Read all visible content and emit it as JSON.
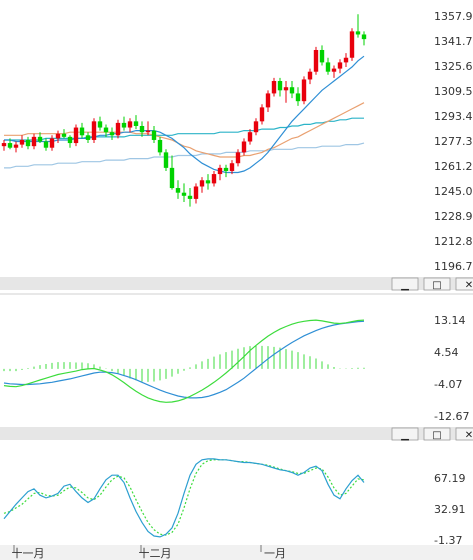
{
  "colors": {
    "up": "#e8000c",
    "down": "#00d200",
    "ma_short": "#2f8fd5",
    "ma_mid": "#e9a070",
    "ma_long1": "#2cb4c8",
    "ma_long2": "#9fc6e4",
    "macd_dif": "#3cdc3c",
    "macd_dea": "#2f8fd5",
    "kdj_k": "#2c9fd0",
    "kdj_d": "#3cdc3c",
    "separator": "#e6e6e6"
  },
  "panel_buttons": [
    {
      "icon": "minimize-icon",
      "glyph": "▁"
    },
    {
      "icon": "restore-icon",
      "glyph": "□"
    },
    {
      "icon": "close-icon",
      "glyph": "✕"
    }
  ],
  "x_labels": [
    "十一月",
    "十二月",
    "一月"
  ],
  "chart_data": [
    {
      "type": "candlestick",
      "ylim": [
        1196.74,
        1357.91
      ],
      "y_ticks": [
        "1357.91",
        "1341.79",
        "1325.68",
        "1309.56",
        "1293.44",
        "1277.33",
        "1261.21",
        "1245.09",
        "1228.98",
        "1212.86",
        "1196.74"
      ],
      "candles": [
        [
          1274,
          1278,
          1271,
          1276
        ],
        [
          1276,
          1279,
          1272,
          1273
        ],
        [
          1273,
          1277,
          1270,
          1275
        ],
        [
          1275,
          1281,
          1273,
          1278
        ],
        [
          1278,
          1280,
          1272,
          1274
        ],
        [
          1274,
          1282,
          1272,
          1280
        ],
        [
          1280,
          1283,
          1276,
          1277
        ],
        [
          1277,
          1279,
          1271,
          1273
        ],
        [
          1273,
          1281,
          1271,
          1279
        ],
        [
          1279,
          1284,
          1276,
          1282
        ],
        [
          1282,
          1285,
          1279,
          1280
        ],
        [
          1280,
          1281,
          1273,
          1276
        ],
        [
          1276,
          1288,
          1274,
          1286
        ],
        [
          1286,
          1289,
          1279,
          1281
        ],
        [
          1281,
          1283,
          1276,
          1278
        ],
        [
          1278,
          1292,
          1276,
          1290
        ],
        [
          1290,
          1293,
          1284,
          1286
        ],
        [
          1286,
          1288,
          1280,
          1283
        ],
        [
          1283,
          1286,
          1278,
          1281
        ],
        [
          1281,
          1291,
          1279,
          1289
        ],
        [
          1289,
          1293,
          1284,
          1286
        ],
        [
          1286,
          1292,
          1283,
          1290
        ],
        [
          1290,
          1294,
          1285,
          1287
        ],
        [
          1287,
          1290,
          1280,
          1283
        ],
        [
          1283,
          1290,
          1281,
          1284
        ],
        [
          1284,
          1287,
          1276,
          1278
        ],
        [
          1278,
          1280,
          1268,
          1270
        ],
        [
          1270,
          1272,
          1258,
          1260
        ],
        [
          1260,
          1268,
          1246,
          1247
        ],
        [
          1247,
          1252,
          1240,
          1244
        ],
        [
          1244,
          1250,
          1238,
          1242
        ],
        [
          1242,
          1247,
          1235,
          1240
        ],
        [
          1240,
          1250,
          1237,
          1248
        ],
        [
          1248,
          1254,
          1244,
          1252
        ],
        [
          1252,
          1256,
          1246,
          1250
        ],
        [
          1250,
          1258,
          1248,
          1256
        ],
        [
          1256,
          1262,
          1252,
          1260
        ],
        [
          1260,
          1262,
          1254,
          1258
        ],
        [
          1258,
          1265,
          1256,
          1263
        ],
        [
          1263,
          1272,
          1261,
          1270
        ],
        [
          1270,
          1279,
          1268,
          1277
        ],
        [
          1277,
          1285,
          1275,
          1283
        ],
        [
          1283,
          1292,
          1281,
          1290
        ],
        [
          1290,
          1301,
          1288,
          1299
        ],
        [
          1299,
          1310,
          1296,
          1308
        ],
        [
          1308,
          1318,
          1306,
          1316
        ],
        [
          1316,
          1318,
          1306,
          1310
        ],
        [
          1310,
          1316,
          1302,
          1312
        ],
        [
          1312,
          1316,
          1305,
          1308
        ],
        [
          1308,
          1312,
          1300,
          1303
        ],
        [
          1303,
          1319,
          1301,
          1317
        ],
        [
          1317,
          1324,
          1314,
          1322
        ],
        [
          1322,
          1338,
          1320,
          1336
        ],
        [
          1336,
          1339,
          1326,
          1328
        ],
        [
          1328,
          1331,
          1320,
          1322
        ],
        [
          1322,
          1326,
          1318,
          1324
        ],
        [
          1324,
          1330,
          1321,
          1328
        ],
        [
          1328,
          1334,
          1325,
          1331
        ],
        [
          1331,
          1350,
          1329,
          1348
        ],
        [
          1348,
          1359,
          1344,
          1346
        ],
        [
          1346,
          1348,
          1339,
          1343
        ]
      ],
      "ma_short": [
        1278,
        1278,
        1277,
        1277,
        1277,
        1277,
        1277,
        1277,
        1277,
        1278,
        1278,
        1278,
        1279,
        1279,
        1279,
        1280,
        1281,
        1281,
        1282,
        1282,
        1283,
        1283,
        1284,
        1284,
        1284,
        1284,
        1283,
        1281,
        1279,
        1276,
        1273,
        1269,
        1266,
        1263,
        1261,
        1259,
        1258,
        1257,
        1257,
        1257,
        1258,
        1260,
        1263,
        1266,
        1270,
        1275,
        1280,
        1285,
        1290,
        1294,
        1298,
        1302,
        1306,
        1310,
        1313,
        1316,
        1319,
        1322,
        1325,
        1329,
        1332
      ],
      "ma_mid": [
        1281,
        1281,
        1281,
        1281,
        1282,
        1282,
        1282,
        1282,
        1282,
        1282,
        1282,
        1283,
        1283,
        1283,
        1283,
        1283,
        1283,
        1283,
        1283,
        1283,
        1283,
        1283,
        1282,
        1282,
        1282,
        1281,
        1280,
        1279,
        1278,
        1276,
        1274,
        1273,
        1271,
        1270,
        1269,
        1268,
        1267,
        1267,
        1267,
        1267,
        1268,
        1268,
        1269,
        1270,
        1272,
        1273,
        1275,
        1277,
        1279,
        1280,
        1282,
        1284,
        1286,
        1288,
        1290,
        1292,
        1294,
        1296,
        1298,
        1300,
        1302
      ],
      "ma_long1": [
        1278,
        1278,
        1278,
        1278,
        1278,
        1278,
        1278,
        1279,
        1279,
        1279,
        1279,
        1279,
        1279,
        1279,
        1280,
        1280,
        1280,
        1280,
        1280,
        1280,
        1280,
        1281,
        1281,
        1281,
        1281,
        1281,
        1281,
        1281,
        1281,
        1282,
        1282,
        1282,
        1282,
        1282,
        1282,
        1282,
        1283,
        1283,
        1283,
        1283,
        1284,
        1284,
        1284,
        1285,
        1285,
        1285,
        1286,
        1286,
        1287,
        1287,
        1288,
        1288,
        1289,
        1289,
        1290,
        1290,
        1291,
        1291,
        1292,
        1292,
        1292
      ],
      "ma_long2": [
        1260,
        1260,
        1261,
        1261,
        1261,
        1262,
        1262,
        1262,
        1262,
        1263,
        1263,
        1263,
        1263,
        1264,
        1264,
        1264,
        1264,
        1265,
        1265,
        1265,
        1265,
        1266,
        1266,
        1266,
        1266,
        1267,
        1267,
        1267,
        1267,
        1268,
        1268,
        1268,
        1268,
        1269,
        1269,
        1269,
        1269,
        1270,
        1270,
        1270,
        1270,
        1271,
        1271,
        1271,
        1271,
        1272,
        1272,
        1272,
        1272,
        1273,
        1273,
        1273,
        1273,
        1274,
        1274,
        1274,
        1274,
        1275,
        1275,
        1275,
        1276
      ]
    },
    {
      "type": "macd",
      "ylim": [
        -12.67,
        13.14
      ],
      "y_ticks": [
        "13.14",
        "4.54",
        "-4.07",
        "-12.67"
      ],
      "dif": [
        -4.5,
        -4.7,
        -4.8,
        -4.5,
        -4.0,
        -3.5,
        -3.0,
        -2.5,
        -2.0,
        -1.5,
        -1.2,
        -0.9,
        -0.6,
        -0.2,
        0.0,
        0.1,
        -0.3,
        -0.8,
        -1.6,
        -2.6,
        -3.7,
        -4.9,
        -6.0,
        -7.0,
        -7.8,
        -8.4,
        -8.8,
        -9.0,
        -8.9,
        -8.6,
        -8.1,
        -7.4,
        -6.6,
        -5.7,
        -4.7,
        -3.6,
        -2.4,
        -1.1,
        0.3,
        1.8,
        3.3,
        4.9,
        6.3,
        7.6,
        8.8,
        9.8,
        10.7,
        11.4,
        12.0,
        12.5,
        12.8,
        13.0,
        13.1,
        12.9,
        12.6,
        12.3,
        12.2,
        12.4,
        12.7,
        13.0,
        13.1
      ],
      "dea": [
        -3.8,
        -4.0,
        -4.1,
        -4.2,
        -4.2,
        -4.1,
        -4.0,
        -3.8,
        -3.6,
        -3.3,
        -3.0,
        -2.7,
        -2.3,
        -1.9,
        -1.5,
        -1.1,
        -0.9,
        -0.9,
        -1.0,
        -1.3,
        -1.8,
        -2.3,
        -2.9,
        -3.6,
        -4.3,
        -5.0,
        -5.7,
        -6.3,
        -6.8,
        -7.3,
        -7.6,
        -7.8,
        -7.8,
        -7.7,
        -7.4,
        -6.9,
        -6.3,
        -5.6,
        -4.6,
        -3.6,
        -2.5,
        -1.2,
        0.1,
        1.4,
        2.7,
        3.9,
        5.0,
        6.1,
        7.1,
        8.0,
        8.9,
        9.6,
        10.3,
        10.9,
        11.4,
        11.8,
        12.1,
        12.3,
        12.5,
        12.7,
        12.8
      ],
      "macd": [
        -0.6,
        -0.6,
        -0.6,
        -0.3,
        0.2,
        0.6,
        1.0,
        1.3,
        1.6,
        1.8,
        1.8,
        1.8,
        1.7,
        1.7,
        1.5,
        1.2,
        0.6,
        0.1,
        -0.6,
        -1.3,
        -1.9,
        -2.6,
        -3.1,
        -3.4,
        -3.5,
        -3.4,
        -3.1,
        -2.7,
        -2.1,
        -1.3,
        -0.5,
        0.4,
        1.2,
        2.0,
        2.7,
        3.3,
        3.9,
        4.5,
        4.9,
        5.4,
        5.8,
        6.1,
        6.2,
        6.2,
        6.1,
        5.9,
        5.7,
        5.3,
        4.9,
        4.5,
        3.9,
        3.4,
        2.8,
        2.0,
        1.2,
        0.5,
        0.1,
        0.1,
        0.2,
        0.3,
        0.3
      ]
    },
    {
      "type": "kdj",
      "ylim": [
        -1.37,
        100
      ],
      "y_ticks": [
        "67.19",
        "32.91",
        "-1.37"
      ],
      "k": [
        22,
        30,
        38,
        45,
        52,
        55,
        48,
        45,
        47,
        50,
        58,
        60,
        52,
        45,
        40,
        44,
        55,
        65,
        70,
        70,
        62,
        45,
        30,
        18,
        8,
        3,
        2,
        5,
        12,
        28,
        50,
        70,
        82,
        87,
        88,
        88,
        87,
        87,
        86,
        85,
        84,
        84,
        83,
        82,
        80,
        78,
        76,
        75,
        73,
        70,
        73,
        78,
        80,
        75,
        60,
        48,
        44,
        55,
        64,
        70,
        62
      ],
      "d": [
        28,
        30,
        34,
        38,
        44,
        50,
        51,
        48,
        47,
        48,
        53,
        57,
        56,
        51,
        45,
        43,
        48,
        57,
        65,
        69,
        67,
        57,
        43,
        30,
        18,
        10,
        5,
        4,
        7,
        16,
        34,
        55,
        72,
        82,
        86,
        87,
        87,
        87,
        86,
        85,
        85,
        84,
        83,
        82,
        81,
        79,
        77,
        75,
        74,
        72,
        72,
        75,
        78,
        77,
        68,
        56,
        48,
        50,
        58,
        66,
        65
      ]
    }
  ]
}
